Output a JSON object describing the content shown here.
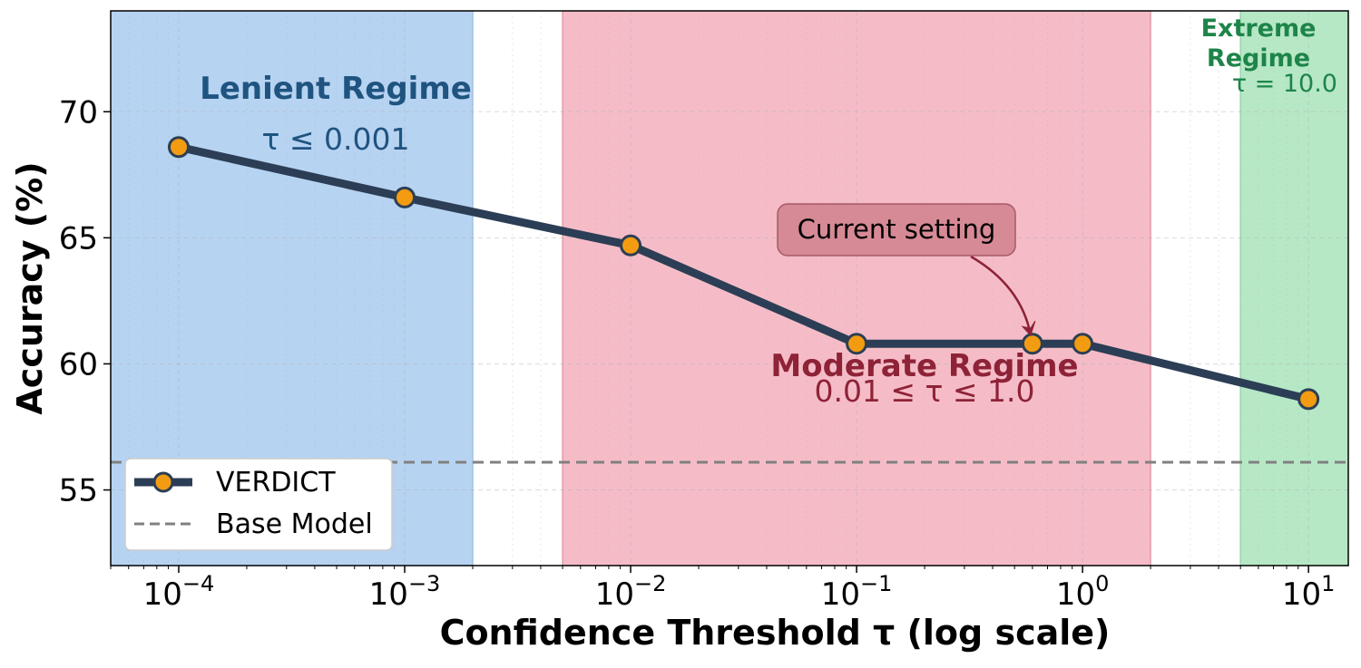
{
  "chart_data": {
    "type": "line",
    "xlabel": "Confidence Threshold τ (log scale)",
    "ylabel": "Accuracy (%)",
    "xscale": "log",
    "xlim": [
      5e-05,
      15
    ],
    "ylim": [
      52,
      74
    ],
    "x_ticks": [
      {
        "value": 0.0001,
        "base": "10",
        "exp": "−4"
      },
      {
        "value": 0.001,
        "base": "10",
        "exp": "−3"
      },
      {
        "value": 0.01,
        "base": "10",
        "exp": "−2"
      },
      {
        "value": 0.1,
        "base": "10",
        "exp": "−1"
      },
      {
        "value": 1,
        "base": "10",
        "exp": "0"
      },
      {
        "value": 10,
        "base": "10",
        "exp": "1"
      }
    ],
    "y_ticks": [
      55,
      60,
      65,
      70
    ],
    "grid": true,
    "legend_position": "bottom-left",
    "series": [
      {
        "name": "VERDICT",
        "color": "#2c3e55",
        "marker_color": "#f39c12",
        "x": [
          0.0001,
          0.001,
          0.01,
          0.1,
          0.6,
          1,
          10
        ],
        "y": [
          68.6,
          66.6,
          64.7,
          60.8,
          60.8,
          60.8,
          58.6
        ]
      }
    ],
    "baseline": {
      "name": "Base Model",
      "y": 56.1,
      "color": "#808080"
    },
    "regions": [
      {
        "x_start": 5e-05,
        "x_end": 0.002,
        "fill": "#b7d3f2",
        "edge": "#9fc1e8",
        "title": "Lenient Regime",
        "subtitle": "τ ≤ 0.001",
        "text_color": "#1f5480"
      },
      {
        "x_start": 0.005,
        "x_end": 2,
        "fill": "#f5bcc7",
        "edge": "#e79aa8",
        "title": "Moderate Regime",
        "subtitle": "0.01 ≤ τ ≤ 1.0",
        "text_color": "#8e2237"
      },
      {
        "x_start": 5,
        "x_end": 15,
        "fill": "#b6e8c6",
        "edge": "#97d8ab",
        "title_lines": [
          "Extreme",
          "Regime"
        ],
        "subtitle": "τ = 10.0",
        "text_color": "#1e8449"
      }
    ],
    "annotation": {
      "text": "Current setting",
      "target_x": 0.6,
      "target_y": 60.8,
      "box_fill": "#d68a96",
      "arrow_color": "#8e2237"
    }
  }
}
